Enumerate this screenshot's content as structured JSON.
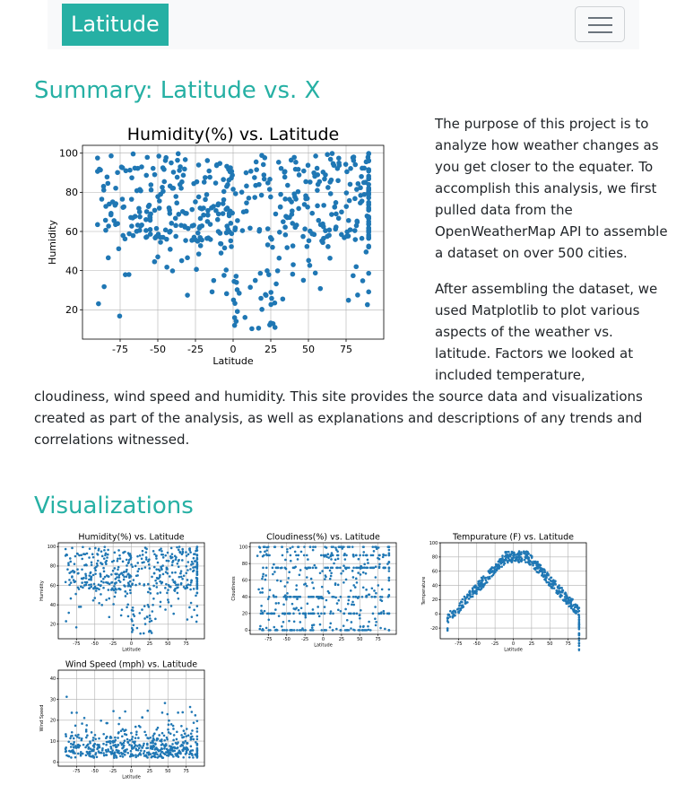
{
  "navbar": {
    "brand": "Latitude"
  },
  "summary": {
    "heading": "Summary: Latitude vs. X",
    "paragraph1": [
      "The purpose of this project is to",
      "analyze how weather changes as",
      "you get closer to the equater. To",
      "accomplish this analysis, we first",
      "pulled data from the",
      "OpenWeatherMap API to assemble",
      "a dataset on over 500 cities."
    ],
    "paragraph2": [
      "After assembling the dataset, we",
      "used Matplotlib to plot various",
      "aspects of the weather vs.",
      "latitude. Factors we looked at",
      "included temperature,"
    ],
    "paragraph2_wrap": [
      "cloudiness, wind speed and humidity. This site provides the source data and visualizations",
      "created as part of the analysis, as well as explanations and descriptions of any trends and",
      "correlations witnessed."
    ]
  },
  "visualizations": {
    "heading": "Visualizations"
  },
  "colors": {
    "accent": "#26b0a4",
    "point": "#1f77b4"
  },
  "chart_data": [
    {
      "id": "main",
      "type": "scatter",
      "title": "Humidity(%) vs. Latitude",
      "xlabel": "Latitude",
      "ylabel": "Humidity",
      "xlim": [
        -100,
        100
      ],
      "ylim": [
        5,
        104
      ],
      "xticks": [
        -75,
        -50,
        -25,
        0,
        25,
        50,
        75
      ],
      "yticks": [
        20,
        40,
        60,
        80,
        100
      ],
      "grid": true,
      "kind": "humidity"
    },
    {
      "id": "humidity",
      "type": "scatter",
      "title": "Humidity(%) vs. Latitude",
      "xlabel": "Latitude",
      "ylabel": "Humidity",
      "xlim": [
        -100,
        100
      ],
      "ylim": [
        5,
        104
      ],
      "xticks": [
        -75,
        -50,
        -25,
        0,
        25,
        50,
        75
      ],
      "yticks": [
        20,
        40,
        60,
        80,
        100
      ],
      "grid": true,
      "kind": "humidity"
    },
    {
      "id": "cloudiness",
      "type": "scatter",
      "title": "Cloudiness(%) vs. Latitude",
      "xlabel": "Latitude",
      "ylabel": "Cloudiness",
      "xlim": [
        -100,
        100
      ],
      "ylim": [
        -5,
        105
      ],
      "xticks": [
        -75,
        -50,
        -25,
        0,
        25,
        50,
        75
      ],
      "yticks": [
        0,
        20,
        40,
        60,
        80,
        100
      ],
      "grid": true,
      "kind": "cloudiness"
    },
    {
      "id": "temperature",
      "type": "scatter",
      "title": "Tempurature (F) vs. Latitude",
      "xlabel": "Latitude",
      "ylabel": "Temperature",
      "xlim": [
        -100,
        100
      ],
      "ylim": [
        -35,
        100
      ],
      "xticks": [
        -75,
        -50,
        -25,
        0,
        25,
        50,
        75
      ],
      "yticks": [
        -20,
        0,
        20,
        40,
        60,
        80,
        100
      ],
      "grid": true,
      "kind": "temperature"
    },
    {
      "id": "wind",
      "type": "scatter",
      "title": "Wind Speed (mph) vs. Latitude",
      "xlabel": "Latitude",
      "ylabel": "Wind Speed",
      "xlim": [
        -100,
        100
      ],
      "ylim": [
        -2,
        44
      ],
      "xticks": [
        -75,
        -50,
        -25,
        0,
        25,
        50,
        75
      ],
      "yticks": [
        0,
        10,
        20,
        30,
        40
      ],
      "grid": true,
      "kind": "wind"
    }
  ]
}
